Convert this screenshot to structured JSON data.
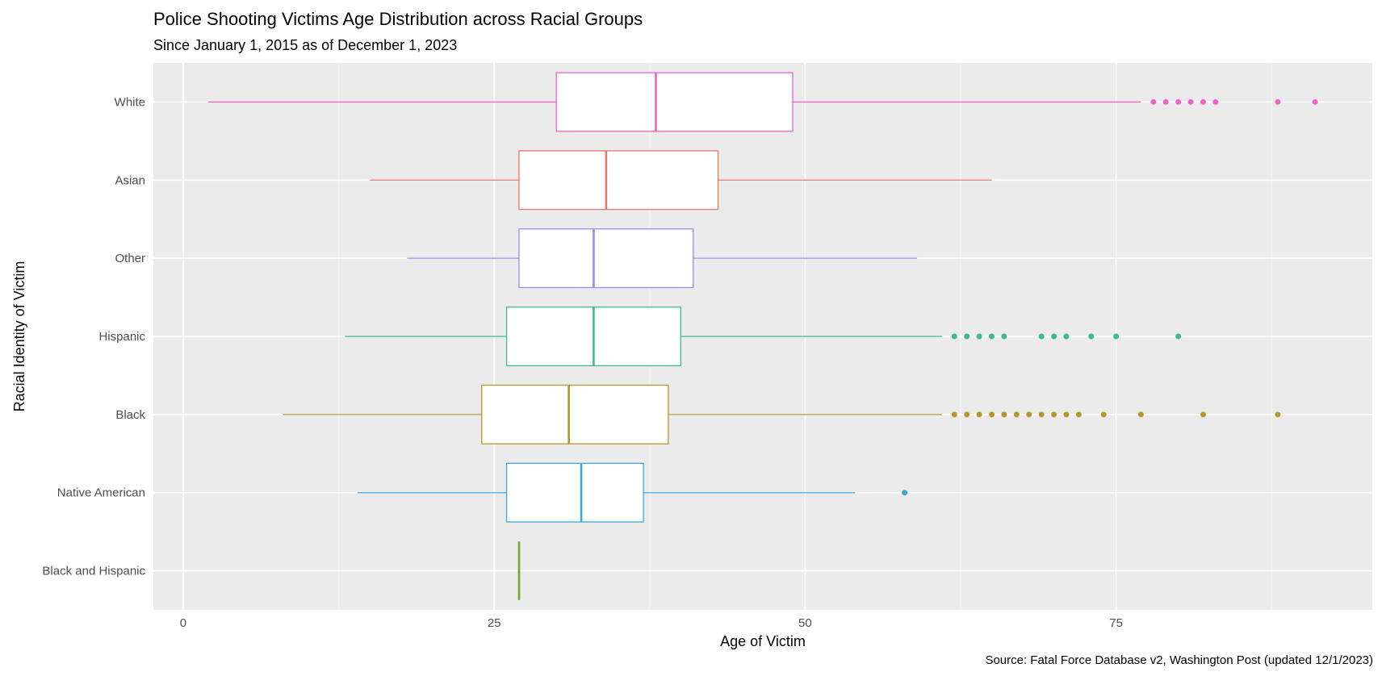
{
  "chart_data": {
    "type": "boxplot",
    "orientation": "horizontal",
    "title": "Police Shooting Victims Age Distribution across Racial Groups",
    "subtitle": "Since January 1, 2015 as of December 1, 2023",
    "xlabel": "Age of Victim",
    "ylabel": "Racial Identity of Victim",
    "caption": "Source: Fatal Force Database v2, Washington Post (updated 12/1/2023)",
    "xlim": [
      -2.4,
      95.6
    ],
    "xticks": [
      0,
      25,
      50,
      75
    ],
    "grid": true,
    "legend": "none",
    "categories": [
      "White",
      "Asian",
      "Other",
      "Hispanic",
      "Black",
      "Native American",
      "Black and Hispanic"
    ],
    "series": [
      {
        "name": "White",
        "color": "#f064c8",
        "whisker_low": 2,
        "q1": 30,
        "median": 38,
        "q3": 49,
        "whisker_high": 77,
        "outliers": [
          78,
          79,
          80,
          81,
          82,
          83,
          88,
          91
        ]
      },
      {
        "name": "Asian",
        "color": "#e8766b",
        "whisker_low": 15,
        "q1": 27,
        "median": 34,
        "q3": 43,
        "whisker_high": 65,
        "outliers": []
      },
      {
        "name": "Other",
        "color": "#9b8ce8",
        "whisker_low": 18,
        "q1": 27,
        "median": 33,
        "q3": 41,
        "whisker_high": 59,
        "outliers": []
      },
      {
        "name": "Hispanic",
        "color": "#3fb88a",
        "whisker_low": 13,
        "q1": 26,
        "median": 33,
        "q3": 40,
        "whisker_high": 61,
        "outliers": [
          62,
          63,
          64,
          65,
          66,
          69,
          70,
          71,
          73,
          75,
          80
        ]
      },
      {
        "name": "Black",
        "color": "#b8962e",
        "whisker_low": 8,
        "q1": 24,
        "median": 31,
        "q3": 39,
        "whisker_high": 61,
        "outliers": [
          62,
          63,
          64,
          65,
          66,
          67,
          68,
          69,
          70,
          71,
          72,
          74,
          77,
          82,
          88
        ]
      },
      {
        "name": "Native American",
        "color": "#3aa8e0",
        "whisker_low": 14,
        "q1": 26,
        "median": 32,
        "q3": 37,
        "whisker_high": 54,
        "outliers": [
          58
        ]
      },
      {
        "name": "Black and Hispanic",
        "color": "#6fa832",
        "whisker_low": 27,
        "q1": 27,
        "median": 27,
        "q3": 27,
        "whisker_high": 27,
        "outliers": []
      }
    ]
  }
}
